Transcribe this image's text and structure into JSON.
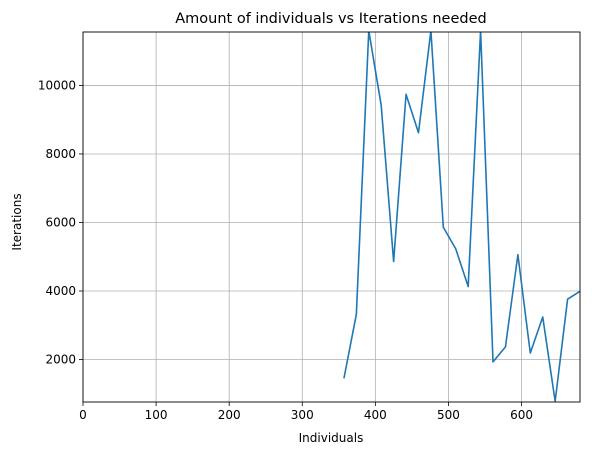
{
  "chart_data": {
    "type": "line",
    "title": "Amount of individuals vs Iterations needed",
    "xlabel": "Individuals",
    "ylabel": "Iterations",
    "xlim": [
      0,
      680
    ],
    "ylim": [
      760,
      11560
    ],
    "xticks": [
      0,
      100,
      200,
      300,
      400,
      500,
      600
    ],
    "yticks": [
      2000,
      4000,
      6000,
      8000,
      10000
    ],
    "grid": true,
    "line_color": "#1f77b4",
    "series": [
      {
        "x": [
          357,
          374,
          391,
          408,
          425,
          442,
          459,
          476,
          493,
          510,
          527,
          544,
          561,
          578,
          595,
          612,
          629,
          646,
          663,
          680
        ],
        "y": [
          1450,
          3320,
          11600,
          9420,
          4860,
          9740,
          8620,
          11600,
          5860,
          5230,
          4130,
          11600,
          1930,
          2370,
          5060,
          2190,
          3240,
          780,
          3760,
          3990
        ]
      }
    ]
  }
}
